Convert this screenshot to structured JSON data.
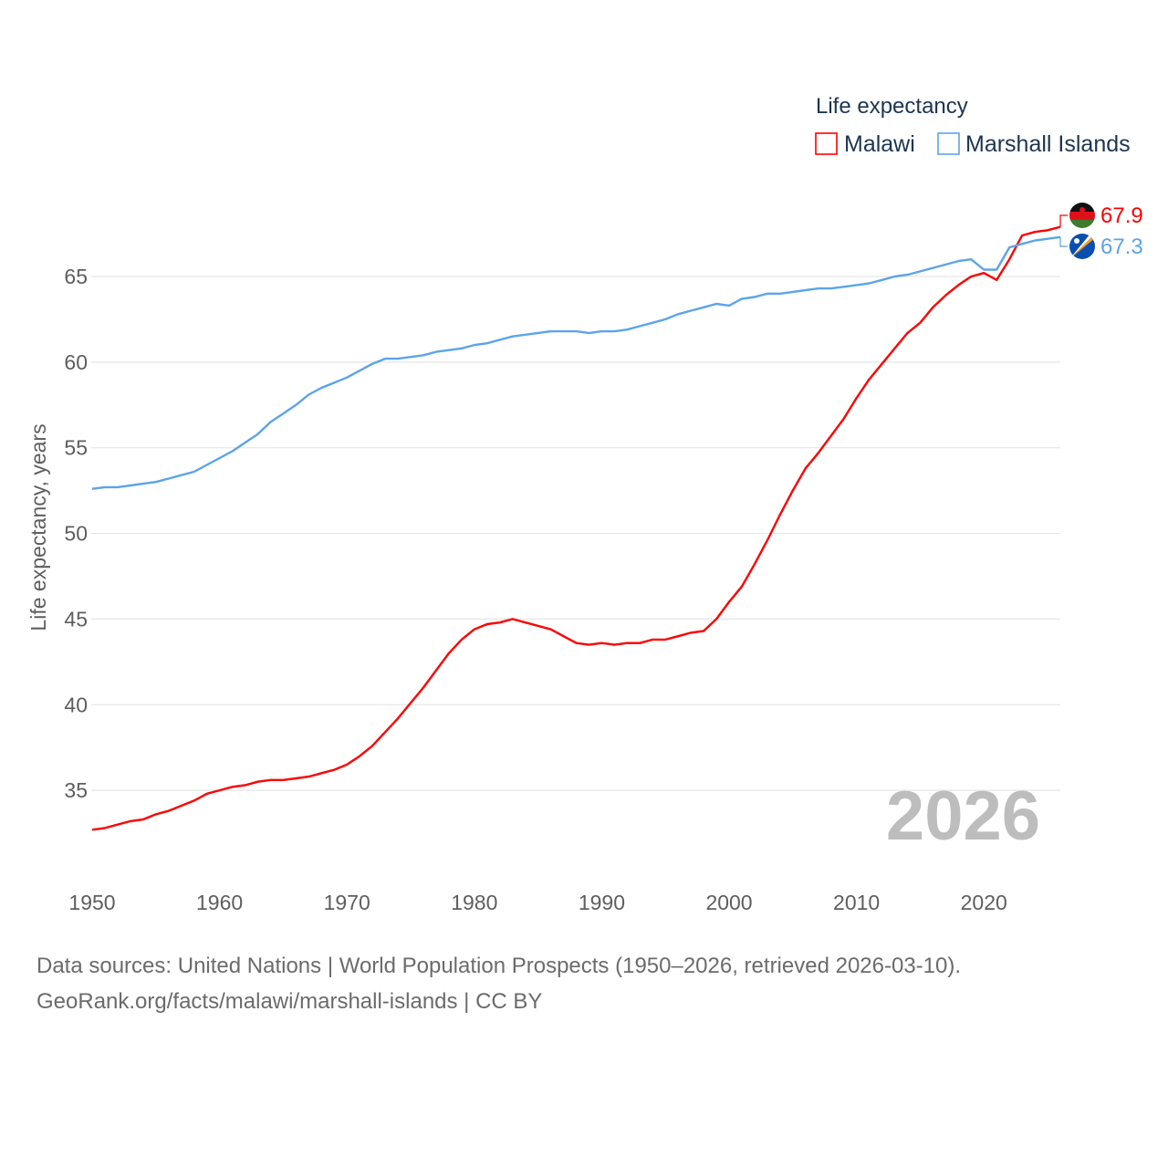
{
  "chart_data": {
    "type": "line",
    "title": "Life expectancy",
    "xlabel": "",
    "ylabel": "Life expectancy, years",
    "xlim": [
      1950,
      2026
    ],
    "ylim": [
      31.5,
      66.5
    ],
    "x_ticks": [
      "1950",
      "1960",
      "1970",
      "1980",
      "1990",
      "2000",
      "2010",
      "2020"
    ],
    "y_ticks": [
      "35",
      "40",
      "45",
      "50",
      "55",
      "60",
      "65"
    ],
    "grid": true,
    "legend_placement": "top-right",
    "watermark_year": "2026",
    "x_start": 1950,
    "series": [
      {
        "name": "Malawi",
        "color": "#ff0000",
        "end_label": "67.9",
        "flag": "malawi-flag",
        "values": [
          32.7,
          32.8,
          33.0,
          33.2,
          33.3,
          33.6,
          33.8,
          34.1,
          34.4,
          34.8,
          35.0,
          35.2,
          35.3,
          35.5,
          35.6,
          35.6,
          35.7,
          35.8,
          36.0,
          36.2,
          36.5,
          37.0,
          37.6,
          38.4,
          39.2,
          40.1,
          41.0,
          42.0,
          43.0,
          43.8,
          44.4,
          44.7,
          44.8,
          45.0,
          44.8,
          44.6,
          44.4,
          44.0,
          43.6,
          43.5,
          43.6,
          43.5,
          43.6,
          43.6,
          43.8,
          43.8,
          44.0,
          44.2,
          44.3,
          45.0,
          46.0,
          46.9,
          48.2,
          49.6,
          51.1,
          52.5,
          53.8,
          54.7,
          55.7,
          56.7,
          57.9,
          59.0,
          59.9,
          60.8,
          61.7,
          62.3,
          63.2,
          63.9,
          64.5,
          65.0,
          65.2,
          64.8,
          66.0,
          67.4,
          67.6,
          67.7,
          67.9
        ]
      },
      {
        "name": "Marshall Islands",
        "color": "#5ba4ea",
        "end_label": "67.3",
        "flag": "marshall-islands-flag",
        "values": [
          52.6,
          52.7,
          52.7,
          52.8,
          52.9,
          53.0,
          53.2,
          53.4,
          53.6,
          54.0,
          54.4,
          54.8,
          55.3,
          55.8,
          56.5,
          57.0,
          57.5,
          58.1,
          58.5,
          58.8,
          59.1,
          59.5,
          59.9,
          60.2,
          60.2,
          60.3,
          60.4,
          60.6,
          60.7,
          60.8,
          61.0,
          61.1,
          61.3,
          61.5,
          61.6,
          61.7,
          61.8,
          61.8,
          61.8,
          61.7,
          61.8,
          61.8,
          61.9,
          62.1,
          62.3,
          62.5,
          62.8,
          63.0,
          63.2,
          63.4,
          63.3,
          63.7,
          63.8,
          64.0,
          64.0,
          64.1,
          64.2,
          64.3,
          64.3,
          64.4,
          64.5,
          64.6,
          64.8,
          65.0,
          65.1,
          65.3,
          65.5,
          65.7,
          65.9,
          66.0,
          65.4,
          65.4,
          66.7,
          66.9,
          67.1,
          67.2,
          67.3
        ]
      }
    ]
  },
  "footer": {
    "sources": "Data sources: United Nations | World Population Prospects (1950–2026, retrieved 2026-03-10).",
    "credit": "GeoRank.org/facts/malawi/marshall-islands | CC BY"
  }
}
